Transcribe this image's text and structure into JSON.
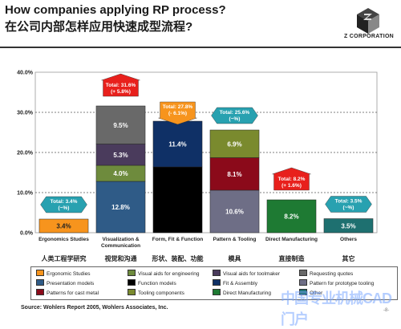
{
  "header": {
    "title_en": "How companies applying RP process?",
    "title_zh": "在公司内部怎样应用快速成型流程?",
    "logo_text": "Z CORPORATION"
  },
  "chart_data": {
    "type": "bar",
    "stacked": true,
    "ylim": [
      0,
      40
    ],
    "yticks": [
      "0.0%",
      "10.0%",
      "20.0%",
      "30.0%",
      "40.0%"
    ],
    "grid": true,
    "categories": [
      "Ergonomics Studies",
      "Visualization & Communication",
      "Form, Fit & Function",
      "Pattern & Tooling",
      "Direct Manufacturing",
      "Others"
    ],
    "categories_zh": [
      "人类工程学研究",
      "视觉和沟通",
      "形状、装配、功能",
      "模具",
      "直接制造",
      "其它"
    ],
    "stacks": [
      {
        "category": "Ergonomics Studies",
        "segments": [
          {
            "series": "Ergonomic Studies",
            "value": 3.4,
            "label": "3.4%",
            "color": "#F7941D"
          }
        ]
      },
      {
        "category": "Visualization & Communication",
        "segments": [
          {
            "series": "Presentation models",
            "value": 12.8,
            "label": "12.8%",
            "color": "#2F5B87"
          },
          {
            "series": "Visual aids for engineering",
            "value": 4.0,
            "label": "4.0%",
            "color": "#6E8B3D"
          },
          {
            "series": "Visual aids for toolmaker",
            "value": 5.3,
            "label": "5.3%",
            "color": "#4A3B5C"
          },
          {
            "series": "Requesting quotes",
            "value": 9.5,
            "label": "9.5%",
            "color": "#696969"
          }
        ]
      },
      {
        "category": "Form, Fit & Function",
        "segments": [
          {
            "series": "Function models",
            "value": 16.4,
            "label": "",
            "color": "#000000"
          },
          {
            "series": "Fit & Assembly",
            "value": 11.4,
            "label": "11.4%",
            "color": "#0F3066"
          }
        ]
      },
      {
        "category": "Pattern & Tooling",
        "segments": [
          {
            "series": "Patterns for prototype tooling",
            "value": 10.6,
            "label": "10.6%",
            "color": "#6E6E86"
          },
          {
            "series": "Patterns for cast metal",
            "value": 8.1,
            "label": "8.1%",
            "color": "#8B0A1A"
          },
          {
            "series": "Tooling components",
            "value": 6.9,
            "label": "6.9%",
            "color": "#7A8A2E"
          }
        ]
      },
      {
        "category": "Direct Manufacturing",
        "segments": [
          {
            "series": "Direct Manufacturing",
            "value": 8.2,
            "label": "8.2%",
            "color": "#1E7A33"
          }
        ]
      },
      {
        "category": "Others",
        "segments": [
          {
            "series": "Other",
            "value": 3.5,
            "label": "3.5%",
            "color": "#1E7070"
          }
        ]
      }
    ],
    "annotations": [
      {
        "category": "Ergonomics Studies",
        "line1": "Total: 3.4%",
        "line2": "(~%)",
        "direction": "flat",
        "color": "#28A1B0",
        "value": 3.4
      },
      {
        "category": "Visualization & Communication",
        "line1": "Total: 31.6%",
        "line2": "(+ 5.8%)",
        "direction": "up",
        "color": "#E8201C",
        "value": 31.6
      },
      {
        "category": "Form, Fit & Function",
        "line1": "Total: 27.8%",
        "line2": "(- 6.1%)",
        "direction": "down",
        "color": "#F7941D",
        "value": 27.8
      },
      {
        "category": "Pattern & Tooling",
        "line1": "Total: 25.6%",
        "line2": "(~%)",
        "direction": "flat",
        "color": "#28A1B0",
        "value": 25.6
      },
      {
        "category": "Direct Manufacturing",
        "line1": "Total: 8.2%",
        "line2": "(+ 1.6%)",
        "direction": "up",
        "color": "#E8201C",
        "value": 8.2
      },
      {
        "category": "Others",
        "line1": "Total: 3.5%",
        "line2": "(~%)",
        "direction": "flat",
        "color": "#28A1B0",
        "value": 3.5
      }
    ]
  },
  "legend": {
    "items": [
      {
        "label": "Ergonomic Studies",
        "color": "#F7941D"
      },
      {
        "label": "Visual aids for engineering",
        "color": "#6E8B3D"
      },
      {
        "label": "Visual aids for toolmaker",
        "color": "#4A3B5C"
      },
      {
        "label": "Requesting quotes",
        "color": "#696969"
      },
      {
        "label": "Presentation models",
        "color": "#2F5B87"
      },
      {
        "label": "Function models",
        "color": "#000000"
      },
      {
        "label": "Fit & Assembly",
        "color": "#0F3066"
      },
      {
        "label": "Pattern for prototype tooling",
        "color": "#6E6E86"
      },
      {
        "label": "Patterns for cast metal",
        "color": "#8B0A1A"
      },
      {
        "label": "Tooling components",
        "color": "#7A8A2E"
      },
      {
        "label": "Direct Manufacturing",
        "color": "#1E7A33"
      },
      {
        "label": "Other",
        "color": "#1E7070"
      }
    ]
  },
  "footer": {
    "source": "Source: Wohlers Report 2005, Wohlers Associates, Inc.",
    "page": "-8-",
    "watermark": "中国专业机械CAD门户"
  }
}
